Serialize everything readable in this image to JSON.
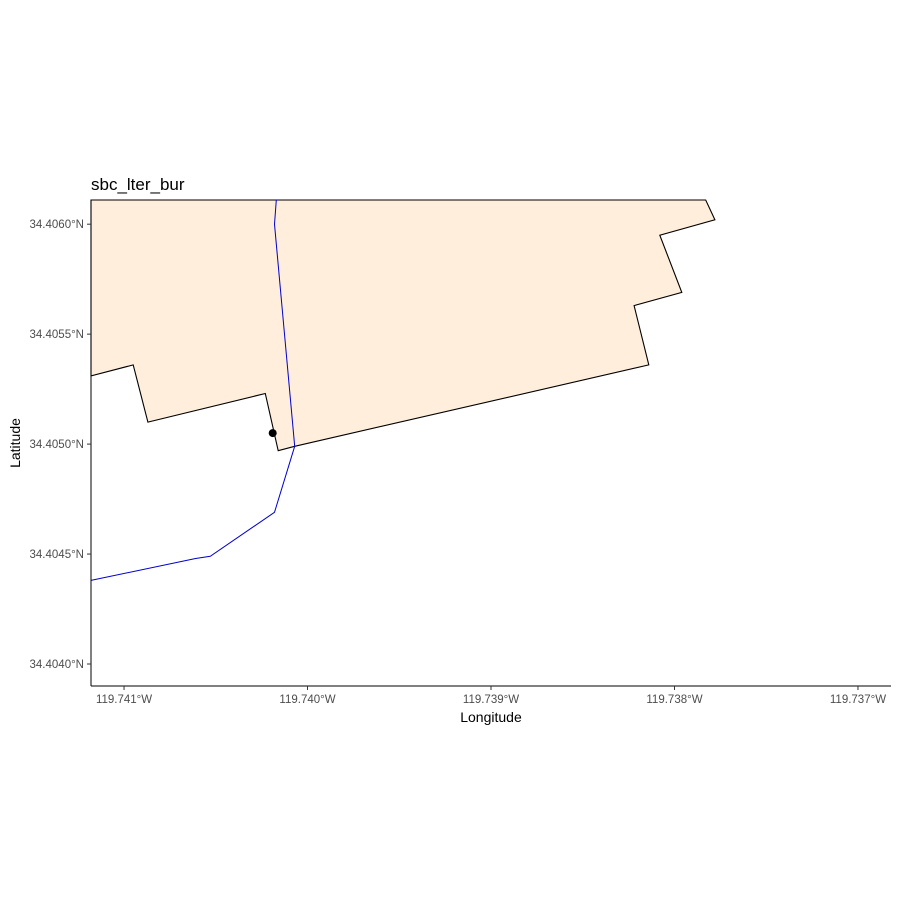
{
  "title": "sbc_lter_bur",
  "axes": {
    "xlabel": "Longitude",
    "ylabel": "Latitude",
    "x_ticks": [
      "119.741°W",
      "119.740°W",
      "119.739°W",
      "119.738°W",
      "119.737°W"
    ],
    "y_ticks": [
      "34.4040°N",
      "34.4045°N",
      "34.4050°N",
      "34.4055°N",
      "34.4060°N"
    ],
    "xlim": [
      -119.74118,
      -119.73682
    ],
    "ylim": [
      34.4039,
      34.40611
    ]
  },
  "colors": {
    "land_fill": "#feeedb",
    "land_outline": "#000000",
    "stream": "#0000cc",
    "site_point": "#000000",
    "axis_line": "#000000"
  },
  "map_data": {
    "land_polygon": [
      [
        -119.74118,
        34.40611
      ],
      [
        -119.73783,
        34.40611
      ],
      [
        -119.73778,
        34.40602
      ],
      [
        -119.73808,
        34.40595
      ],
      [
        -119.73796,
        34.40569
      ],
      [
        -119.73822,
        34.40563
      ],
      [
        -119.73814,
        34.40536
      ],
      [
        -119.74007,
        34.40499
      ],
      [
        -119.74016,
        34.40497
      ],
      [
        -119.74023,
        34.40523
      ],
      [
        -119.74087,
        34.4051
      ],
      [
        -119.74095,
        34.40536
      ],
      [
        -119.74118,
        34.40531
      ]
    ],
    "stream_north": [
      [
        -119.74017,
        34.40611
      ],
      [
        -119.74018,
        34.406
      ],
      [
        -119.74007,
        34.40499
      ]
    ],
    "stream_south": [
      [
        -119.74007,
        34.40499
      ],
      [
        -119.74018,
        34.40469
      ],
      [
        -119.74053,
        34.40449
      ],
      [
        -119.74061,
        34.40448
      ],
      [
        -119.74118,
        34.40438
      ]
    ],
    "site_point": [
      -119.74019,
      34.40505
    ]
  }
}
